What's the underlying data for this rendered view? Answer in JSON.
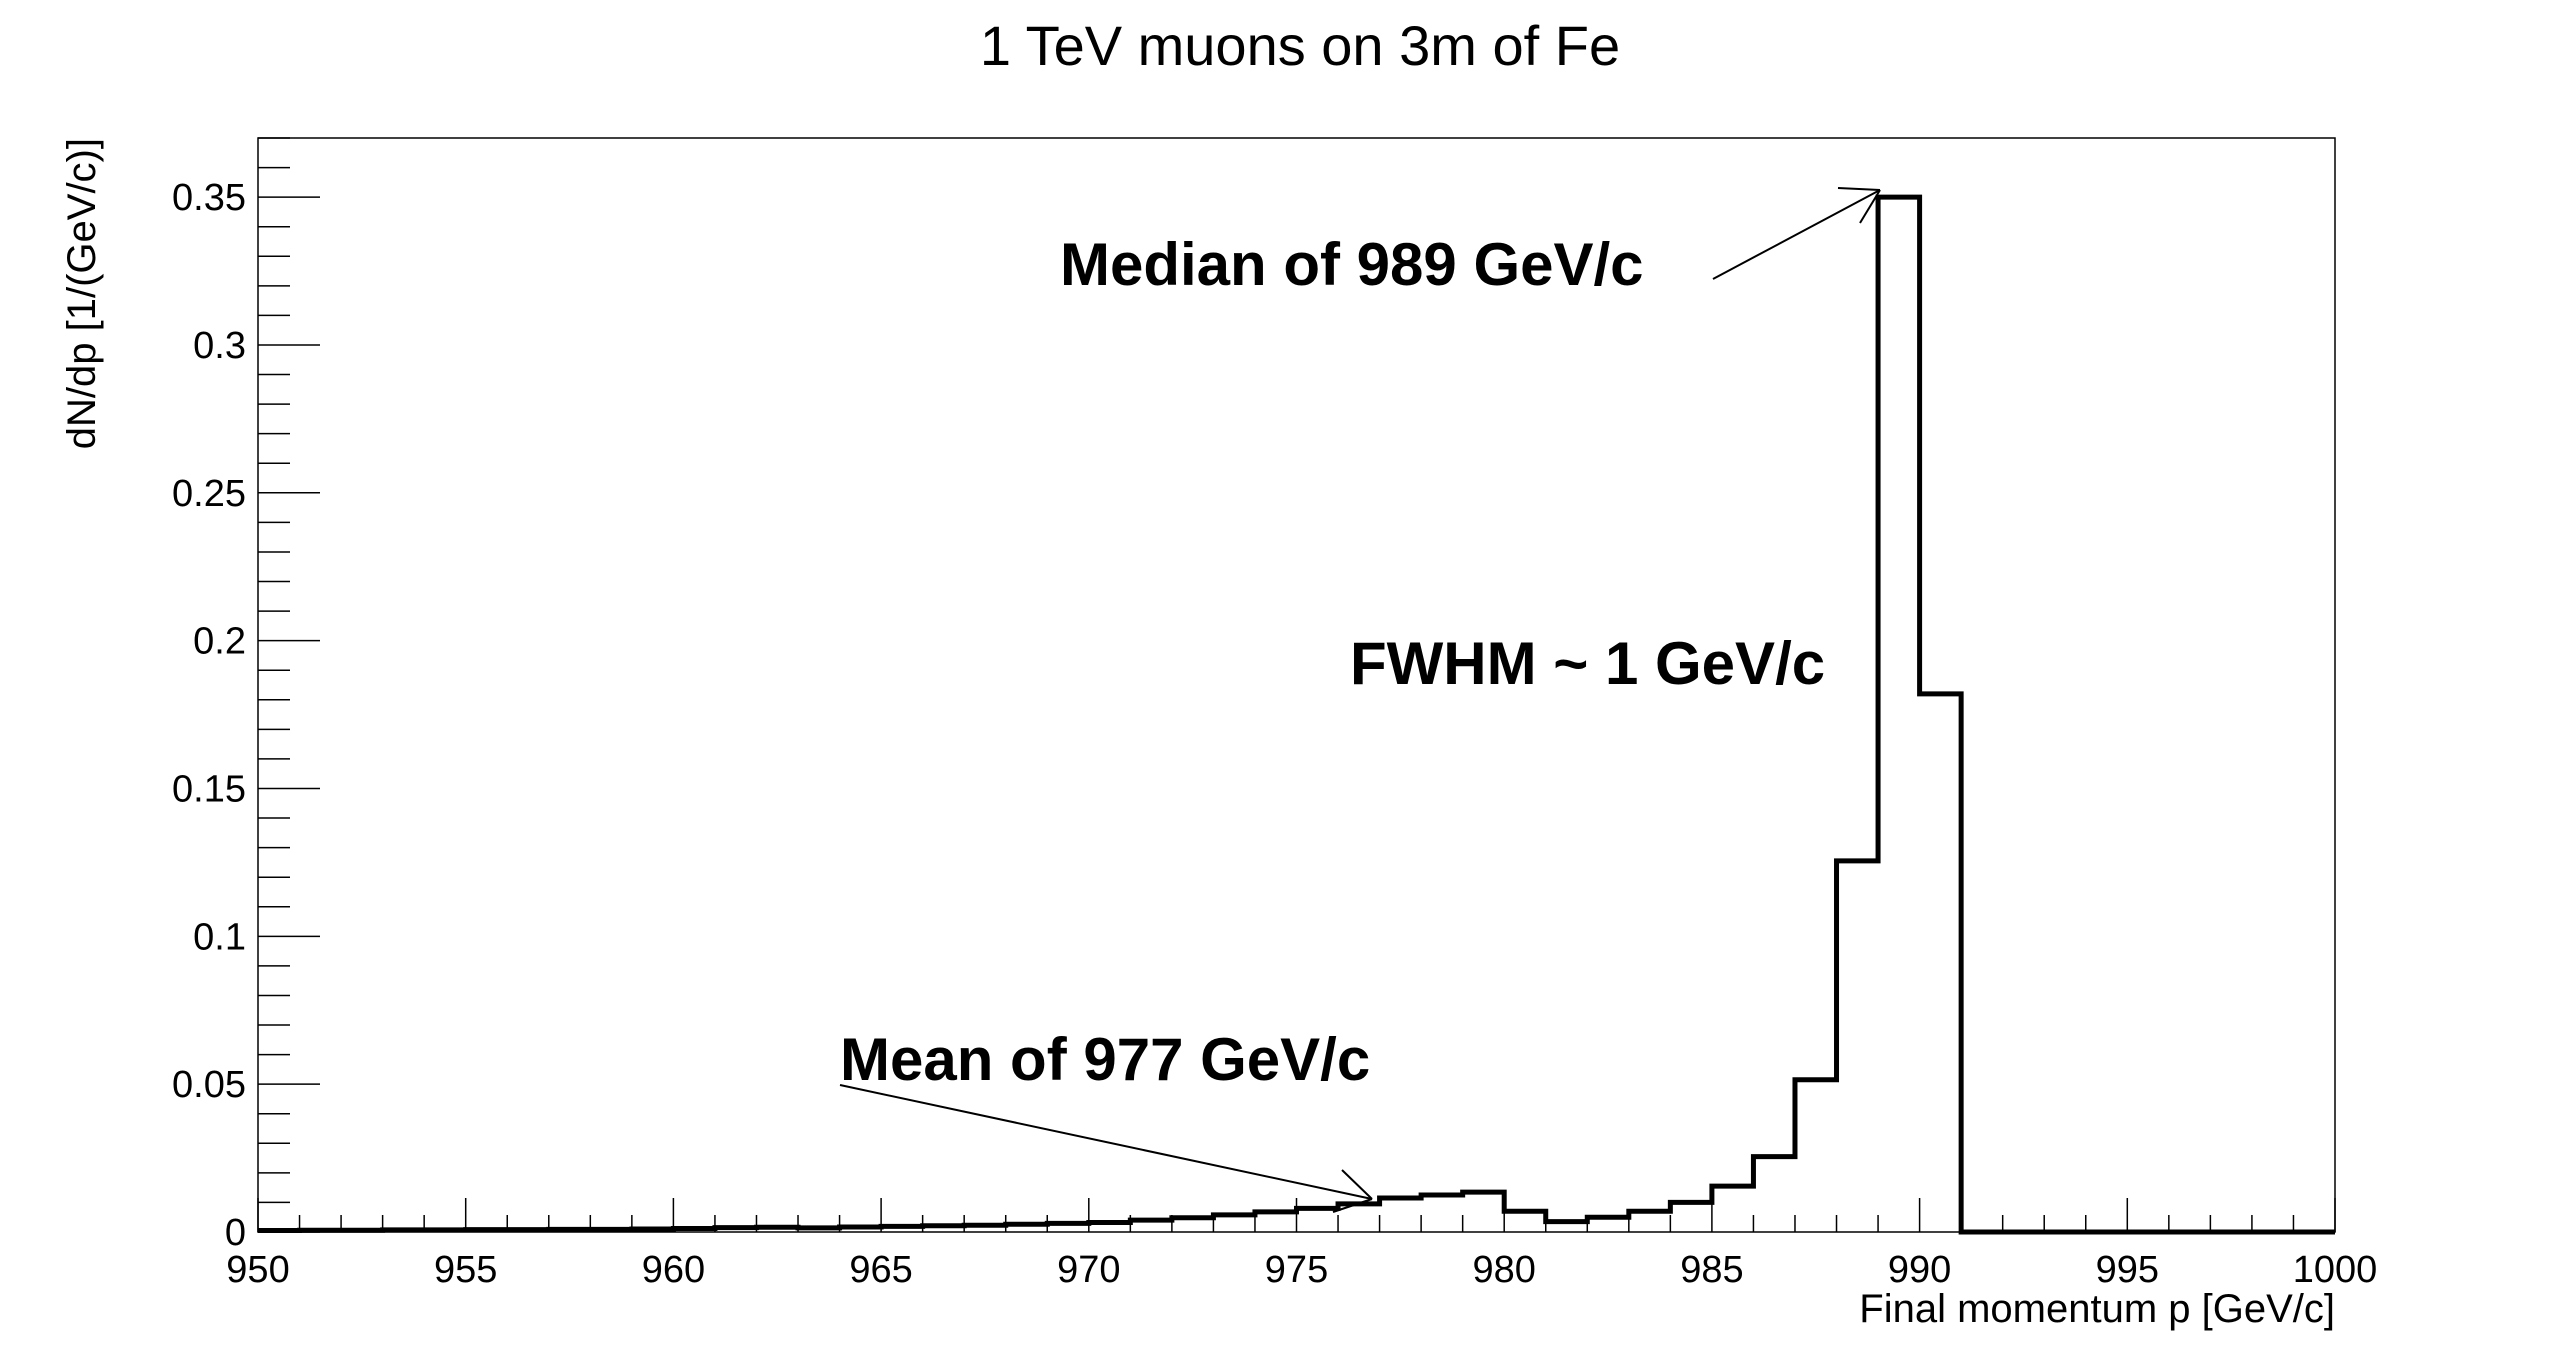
{
  "chart_data": {
    "type": "histogram",
    "title": "1 TeV muons on 3m of Fe",
    "xlabel": "Final momentum p [GeV/c]",
    "ylabel": "dN/dp [1/(GeV/c)]",
    "xlim": [
      950,
      1000
    ],
    "ylim": [
      0,
      0.37
    ],
    "bin_width": 1,
    "x_ticks": [
      950,
      955,
      960,
      965,
      970,
      975,
      980,
      985,
      990,
      995,
      1000
    ],
    "x_tick_labels": [
      "950",
      "955",
      "960",
      "965",
      "970",
      "975",
      "980",
      "985",
      "990",
      "995",
      "1000"
    ],
    "y_ticks": [
      0,
      0.05,
      0.1,
      0.15,
      0.2,
      0.25,
      0.3,
      0.35
    ],
    "y_tick_labels": [
      "0",
      "0.05",
      "0.1",
      "0.15",
      "0.2",
      "0.25",
      "0.3",
      "0.35"
    ],
    "bin_edges": [
      950,
      951,
      952,
      953,
      954,
      955,
      956,
      957,
      958,
      959,
      960,
      961,
      962,
      963,
      964,
      965,
      966,
      967,
      968,
      969,
      970,
      971,
      972,
      973,
      974,
      975,
      976,
      977,
      978,
      979,
      980,
      981,
      982,
      983,
      984,
      985,
      986,
      987,
      988,
      989,
      990,
      991,
      992,
      993,
      994,
      995,
      996,
      997,
      998,
      999,
      1000
    ],
    "values": [
      0.0005,
      0.0006,
      0.0006,
      0.0007,
      0.0007,
      0.0008,
      0.0008,
      0.0009,
      0.0009,
      0.001,
      0.0012,
      0.0015,
      0.0016,
      0.0014,
      0.0017,
      0.0019,
      0.0021,
      0.0023,
      0.0026,
      0.0029,
      0.0032,
      0.004,
      0.0048,
      0.0058,
      0.0068,
      0.008,
      0.0095,
      0.0115,
      0.0125,
      0.0135,
      0.007,
      0.0035,
      0.005,
      0.007,
      0.01,
      0.0155,
      0.0255,
      0.0515,
      0.1255,
      0.35,
      0.182,
      0,
      0,
      0,
      0,
      0,
      0,
      0,
      0,
      0
    ],
    "grid": false,
    "legend": "none",
    "annotations": [
      {
        "text": "Median of 989 GeV/c",
        "x": 989,
        "y": 0.35
      },
      {
        "text": "Mean of 977 GeV/c",
        "x": 977,
        "y": 0.0115
      },
      {
        "text": "FWHM ~ 1 GeV/c"
      }
    ]
  },
  "colors": {
    "line": "#000000",
    "frame": "#000000",
    "background": "#ffffff"
  }
}
